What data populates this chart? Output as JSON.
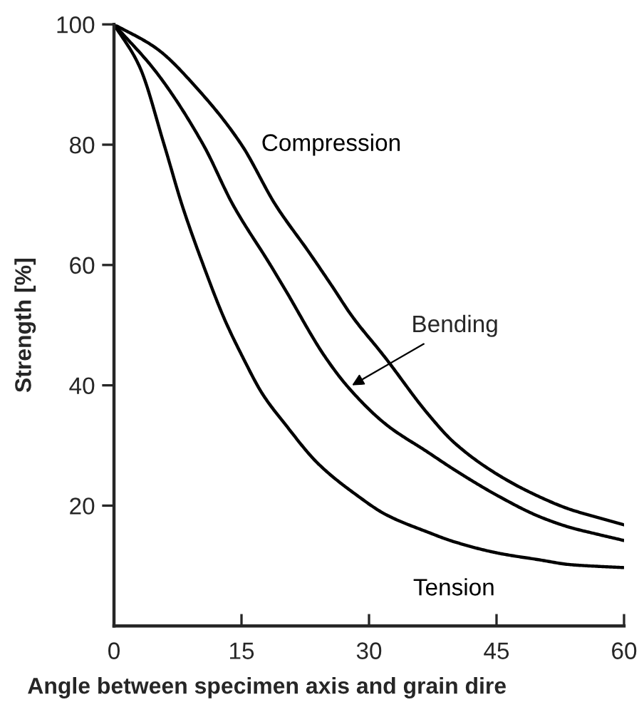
{
  "chart_data": {
    "type": "line",
    "xlabel": "Angle between specimen axis and grain dire",
    "ylabel": "Strength [%]",
    "xlim": [
      0,
      60
    ],
    "ylim": [
      0,
      100
    ],
    "xticks": [
      0,
      15,
      30,
      45,
      60
    ],
    "yticks": [
      20,
      40,
      60,
      80,
      100
    ],
    "tick_labels": true,
    "grid": false,
    "legend": false,
    "marker": "none",
    "line_style": "solid",
    "series": [
      {
        "name": "Compression",
        "color": "#000000",
        "x": [
          0,
          5,
          10,
          15,
          19,
          23,
          25.6,
          28,
          31.8,
          36.9,
          40,
          45.2,
          50,
          53.6,
          57,
          60
        ],
        "values": [
          100,
          96,
          89,
          80,
          70,
          62,
          56.6,
          51.5,
          44.8,
          35.3,
          30.5,
          25.1,
          21.5,
          19.4,
          18,
          16.8
        ]
      },
      {
        "color": "#000000",
        "x": [
          0,
          5,
          10.5,
          14,
          18.4,
          20.1,
          24.8,
          27.6,
          32,
          36.9,
          40,
          45.2,
          50,
          53.6,
          57,
          60
        ],
        "values": [
          100,
          92,
          80,
          70,
          60,
          56,
          44.8,
          39.6,
          33.5,
          28.9,
          26,
          21.6,
          18.2,
          16.4,
          15.2,
          14.2
        ]
      },
      {
        "name": "Tension",
        "color": "#000000",
        "x": [
          0,
          3,
          5.9,
          8,
          10.5,
          13,
          15.1,
          17.5,
          20.1,
          24,
          28.5,
          32,
          36.9,
          40,
          45.2,
          50,
          53.6,
          57,
          60
        ],
        "values": [
          100,
          93,
          80,
          70,
          60,
          51,
          44.8,
          38.5,
          33.6,
          27,
          21.8,
          18.5,
          15.6,
          14,
          12.1,
          11,
          10.2,
          9.9,
          9.7
        ]
      }
    ],
    "annotations": [
      {
        "text": "Bending",
        "x": 28,
        "y": 40
      }
    ]
  }
}
